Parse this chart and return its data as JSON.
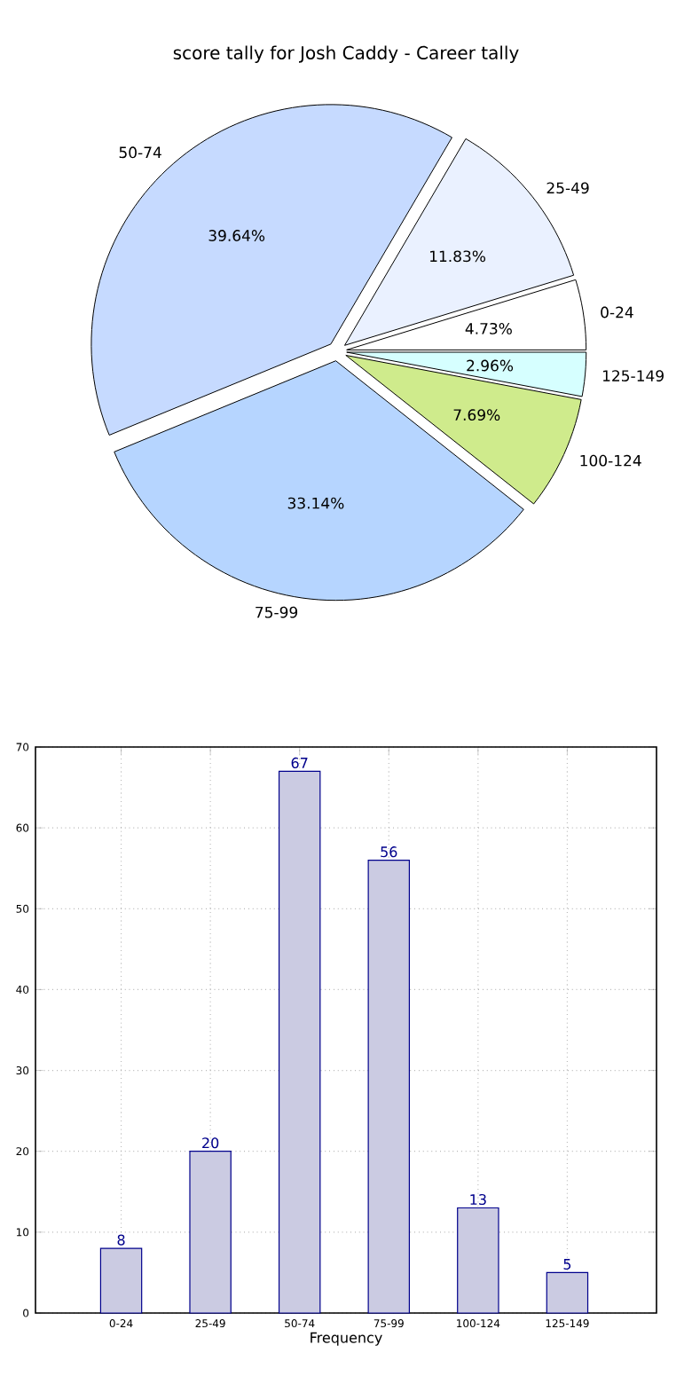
{
  "chart_data": [
    {
      "type": "pie",
      "title": "score tally for Josh Caddy - Career tally",
      "categories": [
        "0-24",
        "25-49",
        "50-74",
        "75-99",
        "100-124",
        "125-149"
      ],
      "values": [
        4.73,
        11.83,
        39.64,
        33.14,
        7.69,
        2.96
      ],
      "value_labels": [
        "4.73%",
        "11.83%",
        "39.64%",
        "33.14%",
        "7.69%",
        "2.96%"
      ],
      "colors": [
        "#ffffff",
        "#eaf1ff",
        "#c6daff",
        "#b6d5ff",
        "#cfeb8c",
        "#d6ffff"
      ]
    },
    {
      "type": "bar",
      "xlabel": "Frequency",
      "categories": [
        "0-24",
        "25-49",
        "50-74",
        "75-99",
        "100-124",
        "125-149"
      ],
      "values": [
        8,
        20,
        67,
        56,
        13,
        5
      ],
      "color": "#cbcbe2",
      "ylim": [
        0,
        70
      ],
      "yticks": [
        0,
        10,
        20,
        30,
        40,
        50,
        60,
        70
      ],
      "grid": true,
      "data_labels": true
    }
  ]
}
